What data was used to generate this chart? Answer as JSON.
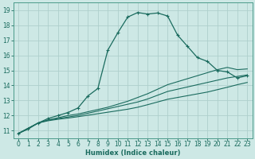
{
  "bg_color": "#cde8e5",
  "grid_color": "#aed0cc",
  "line_color": "#1a6b5e",
  "spine_color": "#4a9a8a",
  "xlabel": "Humidex (Indice chaleur)",
  "xlim": [
    -0.5,
    23.5
  ],
  "ylim": [
    10.5,
    19.5
  ],
  "xticks": [
    0,
    1,
    2,
    3,
    4,
    5,
    6,
    7,
    8,
    9,
    10,
    11,
    12,
    13,
    14,
    15,
    16,
    17,
    18,
    19,
    20,
    21,
    22,
    23
  ],
  "yticks": [
    11,
    12,
    13,
    14,
    15,
    16,
    17,
    18,
    19
  ],
  "series": [
    {
      "x": [
        0,
        1,
        2,
        3,
        4,
        5,
        6,
        7,
        8,
        9,
        10,
        11,
        12,
        13,
        14,
        15,
        16,
        17,
        18,
        19,
        20,
        21,
        22,
        23
      ],
      "y": [
        10.8,
        11.1,
        11.5,
        11.8,
        12.0,
        12.2,
        12.5,
        13.3,
        13.8,
        16.35,
        17.5,
        18.55,
        18.85,
        18.75,
        18.82,
        18.62,
        17.35,
        16.6,
        15.85,
        15.6,
        15.0,
        14.9,
        14.5,
        14.65
      ],
      "marker": true,
      "lw": 0.9
    },
    {
      "x": [
        0,
        2,
        3,
        4,
        5,
        6,
        7,
        8,
        9,
        10,
        11,
        12,
        13,
        14,
        15,
        16,
        17,
        18,
        19,
        20,
        21,
        22,
        23
      ],
      "y": [
        10.8,
        11.5,
        11.7,
        11.85,
        12.0,
        12.1,
        12.25,
        12.4,
        12.55,
        12.75,
        12.95,
        13.2,
        13.45,
        13.75,
        14.05,
        14.25,
        14.45,
        14.65,
        14.85,
        15.05,
        15.2,
        15.05,
        15.1
      ],
      "marker": false,
      "lw": 0.8
    },
    {
      "x": [
        0,
        2,
        3,
        4,
        5,
        6,
        7,
        8,
        9,
        10,
        11,
        12,
        13,
        14,
        15,
        16,
        17,
        18,
        19,
        20,
        21,
        22,
        23
      ],
      "y": [
        10.8,
        11.5,
        11.7,
        11.8,
        11.9,
        12.0,
        12.15,
        12.3,
        12.45,
        12.6,
        12.75,
        12.9,
        13.1,
        13.35,
        13.6,
        13.75,
        13.9,
        14.05,
        14.2,
        14.35,
        14.5,
        14.6,
        14.7
      ],
      "marker": false,
      "lw": 0.8
    },
    {
      "x": [
        0,
        2,
        3,
        4,
        5,
        6,
        7,
        8,
        9,
        10,
        11,
        12,
        13,
        14,
        15,
        16,
        17,
        18,
        19,
        20,
        21,
        22,
        23
      ],
      "y": [
        10.8,
        11.5,
        11.65,
        11.75,
        11.83,
        11.92,
        12.02,
        12.12,
        12.22,
        12.32,
        12.42,
        12.55,
        12.72,
        12.9,
        13.08,
        13.2,
        13.32,
        13.44,
        13.56,
        13.72,
        13.88,
        14.05,
        14.2
      ],
      "marker": false,
      "lw": 0.8
    }
  ]
}
